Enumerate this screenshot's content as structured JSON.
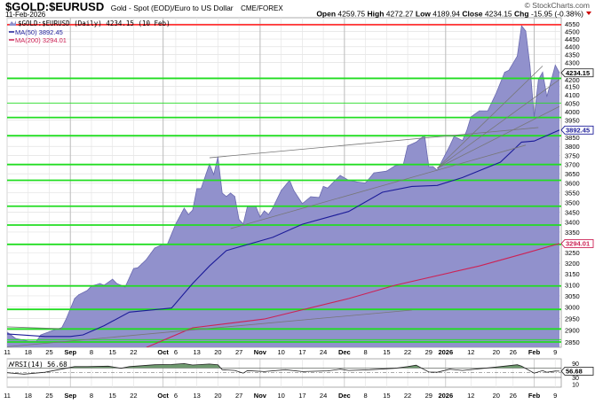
{
  "header": {
    "symbol": "$GOLD:$EURUSD",
    "description": "Gold - Spot (EOD)/Euro to US Dollar",
    "exchange": "CME/FOREX",
    "copyright": "© StockCharts.com",
    "date": "11-Feb-2026",
    "open_label": "Open",
    "open": "4259.75",
    "high_label": "High",
    "high": "4272.27",
    "low_label": "Low",
    "low": "4189.94",
    "close_label": "Close",
    "close": "4234.15",
    "chg_label": "Chg",
    "chg": "-15.95 (-0.38%)",
    "chg_icon": "down-triangle-icon"
  },
  "colors": {
    "area_fill": "#9191cc",
    "area_line": "#6a6ab0",
    "ma50": "#1c1c99",
    "ma200": "#cc2255",
    "support_lines": "#22dd22",
    "resistance_line": "#ff3333",
    "trendlines": "#777777",
    "rsi_fill": "#6f9a6f"
  },
  "chart_data": [
    {
      "type": "area",
      "scale": "log",
      "ylim": [
        2850,
        4550
      ],
      "grid": true,
      "legend": {
        "price": "$GOLD:$EURUSD (Daily) 4234.15 (10 Feb)",
        "ma50": "MA(50) 3892.45",
        "ma200": "MA(200) 3294.01"
      },
      "last_value_tags": {
        "price": "4234.15",
        "ma50": "3892.45",
        "ma200": "3294.01"
      },
      "y_ticks": [
        4550,
        4500,
        4450,
        4400,
        4350,
        4300,
        4200,
        4150,
        4100,
        4050,
        4000,
        3950,
        3850,
        3800,
        3750,
        3700,
        3650,
        3600,
        3550,
        3500,
        3450,
        3400,
        3350,
        3250,
        3200,
        3150,
        3100,
        3050,
        3000,
        2950,
        2900,
        2850
      ],
      "x_ticks": [
        {
          "date": "2025-08-11",
          "label": "11"
        },
        {
          "date": "2025-08-18",
          "label": "18"
        },
        {
          "date": "2025-08-25",
          "label": "25"
        },
        {
          "date": "2025-09-01",
          "label": "Sep",
          "month": true
        },
        {
          "date": "2025-09-08",
          "label": "8"
        },
        {
          "date": "2025-09-15",
          "label": "15"
        },
        {
          "date": "2025-09-22",
          "label": "22"
        },
        {
          "date": "2025-10-01",
          "label": "Oct",
          "month": true
        },
        {
          "date": "2025-10-06",
          "label": "6"
        },
        {
          "date": "2025-10-13",
          "label": "13"
        },
        {
          "date": "2025-10-20",
          "label": "20"
        },
        {
          "date": "2025-10-27",
          "label": "27"
        },
        {
          "date": "2025-11-03",
          "label": "Nov",
          "month": true
        },
        {
          "date": "2025-11-10",
          "label": "10"
        },
        {
          "date": "2025-11-17",
          "label": "17"
        },
        {
          "date": "2025-11-24",
          "label": "24"
        },
        {
          "date": "2025-12-01",
          "label": "Dec",
          "month": true
        },
        {
          "date": "2025-12-08",
          "label": "8"
        },
        {
          "date": "2025-12-15",
          "label": "15"
        },
        {
          "date": "2025-12-22",
          "label": "22"
        },
        {
          "date": "2025-12-29",
          "label": "29"
        },
        {
          "date": "2026-01-02",
          "label": "2026",
          "month": true
        },
        {
          "date": "2026-01-12",
          "label": "12"
        },
        {
          "date": "2026-01-20",
          "label": "20"
        },
        {
          "date": "2026-01-26",
          "label": "26"
        },
        {
          "date": "2026-02-02",
          "label": "Feb",
          "month": true
        },
        {
          "date": "2026-02-09",
          "label": "9"
        }
      ],
      "x_range": [
        "2025-08-11",
        "2026-02-10"
      ],
      "series": [
        {
          "key": "price",
          "points": [
            [
              "2025-08-11",
              2892
            ],
            [
              "2025-08-13",
              2865
            ],
            [
              "2025-08-18",
              2854
            ],
            [
              "2025-08-20",
              2854
            ],
            [
              "2025-08-21",
              2880
            ],
            [
              "2025-08-26",
              2900
            ],
            [
              "2025-08-28",
              2911
            ],
            [
              "2025-08-29",
              2948
            ],
            [
              "2025-09-02",
              3038
            ],
            [
              "2025-09-03",
              3055
            ],
            [
              "2025-09-05",
              3074
            ],
            [
              "2025-09-08",
              3094
            ],
            [
              "2025-09-10",
              3106
            ],
            [
              "2025-09-11",
              3098
            ],
            [
              "2025-09-15",
              3126
            ],
            [
              "2025-09-16",
              3106
            ],
            [
              "2025-09-18",
              3090
            ],
            [
              "2025-09-22",
              3175
            ],
            [
              "2025-09-23",
              3179
            ],
            [
              "2025-09-25",
              3217
            ],
            [
              "2025-09-29",
              3272
            ],
            [
              "2025-10-01",
              3290
            ],
            [
              "2025-10-02",
              3290
            ],
            [
              "2025-10-06",
              3390
            ],
            [
              "2025-10-08",
              3470
            ],
            [
              "2025-10-09",
              3438
            ],
            [
              "2025-10-10",
              3460
            ],
            [
              "2025-10-13",
              3571
            ],
            [
              "2025-10-14",
              3571
            ],
            [
              "2025-10-16",
              3703
            ],
            [
              "2025-10-17",
              3646
            ],
            [
              "2025-10-20",
              3742
            ],
            [
              "2025-10-21",
              3548
            ],
            [
              "2025-10-22",
              3530
            ],
            [
              "2025-10-23",
              3548
            ],
            [
              "2025-10-24",
              3530
            ],
            [
              "2025-10-27",
              3413
            ],
            [
              "2025-10-28",
              3390
            ],
            [
              "2025-10-29",
              3479
            ],
            [
              "2025-10-31",
              3479
            ],
            [
              "2025-11-03",
              3425
            ],
            [
              "2025-11-04",
              3456
            ],
            [
              "2025-11-05",
              3438
            ],
            [
              "2025-11-06",
              3470
            ],
            [
              "2025-11-10",
              3561
            ],
            [
              "2025-11-12",
              3615
            ],
            [
              "2025-11-13",
              3561
            ],
            [
              "2025-11-17",
              3493
            ],
            [
              "2025-11-19",
              3529
            ],
            [
              "2025-11-21",
              3525
            ],
            [
              "2025-11-24",
              3583
            ],
            [
              "2025-11-25",
              3574
            ],
            [
              "2025-11-28",
              3641
            ],
            [
              "2025-12-02",
              3615
            ],
            [
              "2025-12-04",
              3606
            ],
            [
              "2025-12-08",
              3601
            ],
            [
              "2025-12-10",
              3655
            ],
            [
              "2025-12-15",
              3664
            ],
            [
              "2025-12-17",
              3693
            ],
            [
              "2025-12-19",
              3703
            ],
            [
              "2025-12-22",
              3803
            ],
            [
              "2025-12-24",
              3824
            ],
            [
              "2025-12-26",
              3862
            ],
            [
              "2025-12-29",
              3689
            ],
            [
              "2025-12-30",
              3689
            ],
            [
              "2025-12-31",
              3669
            ],
            [
              "2026-01-05",
              3803
            ],
            [
              "2026-01-06",
              3856
            ],
            [
              "2026-01-08",
              3833
            ],
            [
              "2026-01-09",
              3888
            ],
            [
              "2026-01-12",
              3968
            ],
            [
              "2026-01-14",
              4004
            ],
            [
              "2026-01-16",
              4004
            ],
            [
              "2026-01-20",
              4110
            ],
            [
              "2026-01-22",
              4238
            ],
            [
              "2026-01-23",
              4250
            ],
            [
              "2026-01-27",
              4340
            ],
            [
              "2026-01-28",
              4538
            ],
            [
              "2026-01-29",
              4503
            ],
            [
              "2026-01-30",
              4277
            ],
            [
              "2026-02-02",
              3968
            ],
            [
              "2026-02-03",
              4193
            ],
            [
              "2026-02-04",
              4238
            ],
            [
              "2026-02-05",
              4089
            ],
            [
              "2026-02-09",
              4282
            ],
            [
              "2026-02-10",
              4234.15
            ]
          ]
        },
        {
          "key": "ma50",
          "name": "MA(50)",
          "points": [
            [
              "2025-08-11",
              2884
            ],
            [
              "2025-08-22",
              2873
            ],
            [
              "2025-09-01",
              2873
            ],
            [
              "2025-09-04",
              2880
            ],
            [
              "2025-09-11",
              2919
            ],
            [
              "2025-09-19",
              2978
            ],
            [
              "2025-10-03",
              2996
            ],
            [
              "2025-10-10",
              3106
            ],
            [
              "2025-10-16",
              3187
            ],
            [
              "2025-10-22",
              3260
            ],
            [
              "2025-11-06",
              3324
            ],
            [
              "2025-11-17",
              3389
            ],
            [
              "2025-12-02",
              3453
            ],
            [
              "2025-12-12",
              3552
            ],
            [
              "2025-12-23",
              3583
            ],
            [
              "2025-12-31",
              3588
            ],
            [
              "2026-01-08",
              3630
            ],
            [
              "2026-01-21",
              3713
            ],
            [
              "2026-01-28",
              3824
            ],
            [
              "2026-02-02",
              3830
            ],
            [
              "2026-02-10",
              3892.45
            ]
          ]
        },
        {
          "key": "ma200",
          "name": "MA(200)",
          "points": [
            [
              "2025-09-25",
              2827
            ],
            [
              "2025-10-10",
              2910
            ],
            [
              "2025-11-04",
              2948
            ],
            [
              "2025-12-02",
              3038
            ],
            [
              "2025-12-17",
              3098
            ],
            [
              "2026-01-14",
              3187
            ],
            [
              "2026-01-29",
              3248
            ],
            [
              "2026-02-10",
              3294.01
            ]
          ]
        }
      ],
      "horizontal_lines": [
        {
          "value": 4545,
          "kind": "resistance"
        },
        {
          "value": 4200
        },
        {
          "value": 4050,
          "thin": true
        },
        {
          "value": 3965
        },
        {
          "value": 3860
        },
        {
          "value": 3700
        },
        {
          "value": 3615
        },
        {
          "value": 3480
        },
        {
          "value": 3385
        },
        {
          "value": 3290
        },
        {
          "value": 3095
        },
        {
          "value": 2990
        },
        {
          "value": 2905
        },
        {
          "value": 2860,
          "thin": true
        },
        {
          "value": 2850
        }
      ],
      "trendlines": [
        [
          [
            "2025-08-11",
            2830
          ],
          [
            "2025-12-23",
            2987
          ]
        ],
        [
          [
            "2025-08-11",
            2914
          ],
          [
            "2025-08-28",
            2906
          ]
        ],
        [
          [
            "2025-10-16",
            3737
          ],
          [
            "2026-02-03",
            3907
          ]
        ],
        [
          [
            "2025-10-23",
            3367
          ],
          [
            "2026-01-29",
            3807
          ]
        ],
        [
          [
            "2025-12-31",
            3680
          ],
          [
            "2026-02-04",
            4277
          ]
        ],
        [
          [
            "2025-12-31",
            3680
          ],
          [
            "2026-02-10",
            4193
          ]
        ],
        [
          [
            "2025-12-31",
            3680
          ],
          [
            "2026-02-10",
            4030
          ]
        ]
      ]
    },
    {
      "type": "line",
      "legend": "RSI(14) 56.68",
      "last_value_tag": "56.68",
      "ylim": [
        0,
        100
      ],
      "y_ticks": [
        90,
        30,
        10
      ],
      "levels": [
        70,
        50,
        30
      ],
      "points": [
        [
          "2025-08-11",
          50
        ],
        [
          "2025-08-15",
          44
        ],
        [
          "2025-08-22",
          52
        ],
        [
          "2025-08-26",
          59
        ],
        [
          "2025-09-02",
          76
        ],
        [
          "2025-09-05",
          76
        ],
        [
          "2025-09-12",
          78
        ],
        [
          "2025-09-17",
          69
        ],
        [
          "2025-09-19",
          76
        ],
        [
          "2025-09-29",
          84
        ],
        [
          "2025-10-03",
          85
        ],
        [
          "2025-10-08",
          89
        ],
        [
          "2025-10-10",
          83
        ],
        [
          "2025-10-16",
          87
        ],
        [
          "2025-10-20",
          84
        ],
        [
          "2025-10-21",
          63
        ],
        [
          "2025-10-24",
          60
        ],
        [
          "2025-10-28",
          48
        ],
        [
          "2025-10-29",
          59
        ],
        [
          "2025-11-04",
          55
        ],
        [
          "2025-11-11",
          63
        ],
        [
          "2025-11-17",
          55
        ],
        [
          "2025-11-25",
          58
        ],
        [
          "2025-11-28",
          65
        ],
        [
          "2025-12-02",
          60
        ],
        [
          "2025-12-09",
          63
        ],
        [
          "2025-12-17",
          69
        ],
        [
          "2025-12-22",
          76
        ],
        [
          "2025-12-24",
          82
        ],
        [
          "2025-12-29",
          53
        ],
        [
          "2025-12-31",
          52
        ],
        [
          "2026-01-05",
          65
        ],
        [
          "2026-01-08",
          60
        ],
        [
          "2026-01-14",
          67
        ],
        [
          "2026-01-20",
          74
        ],
        [
          "2026-01-27",
          84
        ],
        [
          "2026-01-28",
          78
        ],
        [
          "2026-02-02",
          48
        ],
        [
          "2026-02-04",
          59
        ],
        [
          "2026-02-05",
          52
        ],
        [
          "2026-02-09",
          57
        ],
        [
          "2026-02-10",
          56.68
        ]
      ]
    }
  ]
}
